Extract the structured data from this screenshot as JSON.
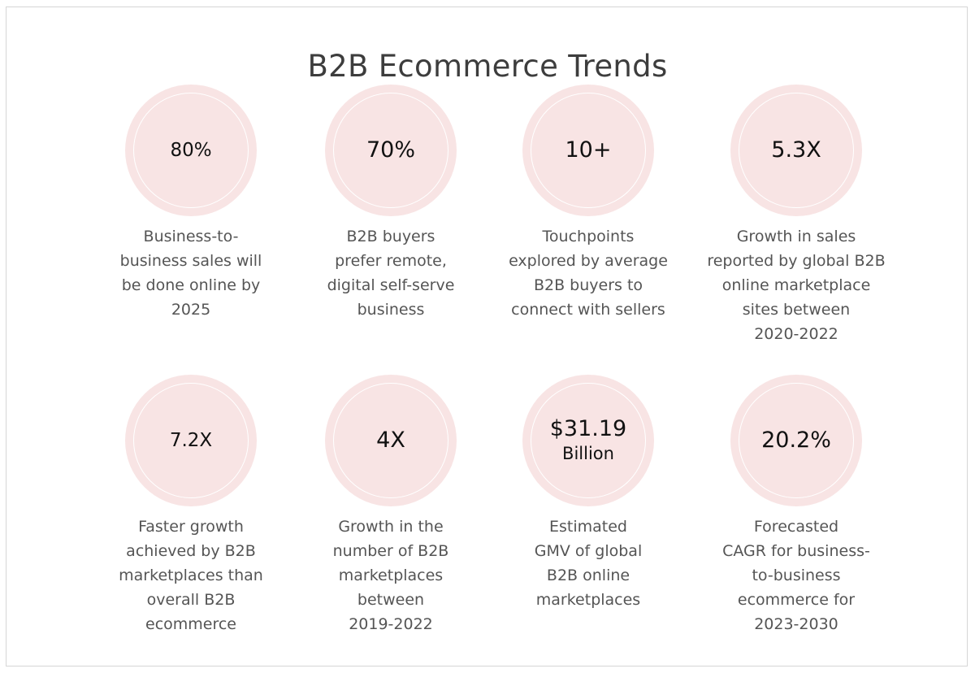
{
  "title": "B2B Ecommerce Trends",
  "stats": [
    {
      "value": "80%",
      "lines": [
        "Business-to-",
        "business sales will",
        "be done online by",
        "2025"
      ]
    },
    {
      "value": "70%",
      "lines": [
        "B2B buyers",
        "prefer remote,",
        "digital self-serve",
        "business"
      ]
    },
    {
      "value": "10+",
      "lines": [
        "Touchpoints",
        "explored by average",
        "B2B buyers to",
        "connect with sellers"
      ]
    },
    {
      "value": "5.3X",
      "lines": [
        "Growth in sales",
        "reported by global B2B",
        "online marketplace",
        "sites between",
        "2020-2022"
      ]
    },
    {
      "value": "7.2X",
      "lines": [
        "Faster growth",
        "achieved by B2B",
        "marketplaces than",
        "overall B2B",
        "ecommerce"
      ]
    },
    {
      "value": "4X",
      "lines": [
        "Growth in the",
        "number of B2B",
        "marketplaces",
        "between",
        "2019-2022"
      ]
    },
    {
      "value": "$31.19",
      "value_sub": "Billion",
      "lines": [
        "Estimated",
        "GMV of global",
        "B2B online",
        "marketplaces"
      ]
    },
    {
      "value": "20.2%",
      "lines": [
        "Forecasted",
        "CAGR for business-",
        "to-business",
        "ecommerce for",
        "2023-2030"
      ]
    }
  ],
  "colors": {
    "circle_fill": "#f8e4e4",
    "circle_ring": "#ffffff",
    "value_text": "#111111",
    "desc_text": "#555555",
    "title_text": "#3d3d3d"
  }
}
